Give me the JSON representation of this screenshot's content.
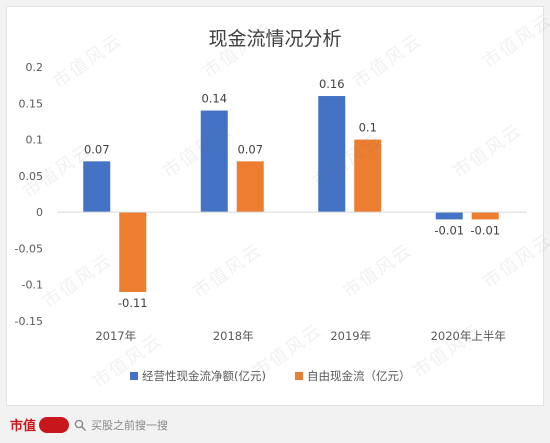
{
  "chart_data": {
    "type": "bar",
    "title": "现金流情况分析",
    "categories": [
      "2017年",
      "2018年",
      "2019年",
      "2020年上半年"
    ],
    "series": [
      {
        "name": "经营性现金流净额(亿元)",
        "color": "#4472c4",
        "values": [
          0.07,
          0.14,
          0.16,
          -0.01
        ]
      },
      {
        "name": "自由现金流（亿元）",
        "color": "#ed7d31",
        "values": [
          -0.11,
          0.07,
          0.1,
          -0.01
        ]
      }
    ],
    "ylim": [
      -0.15,
      0.2
    ],
    "yticks": [
      0.2,
      0.15,
      0.1,
      0.05,
      0,
      -0.05,
      -0.1,
      -0.15
    ],
    "ytick_labels": [
      "0.2",
      "0.15",
      "0.1",
      "0.05",
      "0",
      "-0.05",
      "-0.1",
      "-0.15"
    ],
    "data_labels": [
      [
        "0.07",
        "0.14",
        "0.16",
        "-0.01"
      ],
      [
        "-0.11",
        "0.07",
        "0.1",
        "-0.01"
      ]
    ],
    "legend_position": "bottom",
    "grid": false
  },
  "watermark": {
    "text": "市值风云"
  },
  "footer": {
    "brand": "市值",
    "brand_icon": "fengyun-logo-badge",
    "search_icon": "search-icon",
    "search_placeholder": "买股之前搜一搜"
  }
}
